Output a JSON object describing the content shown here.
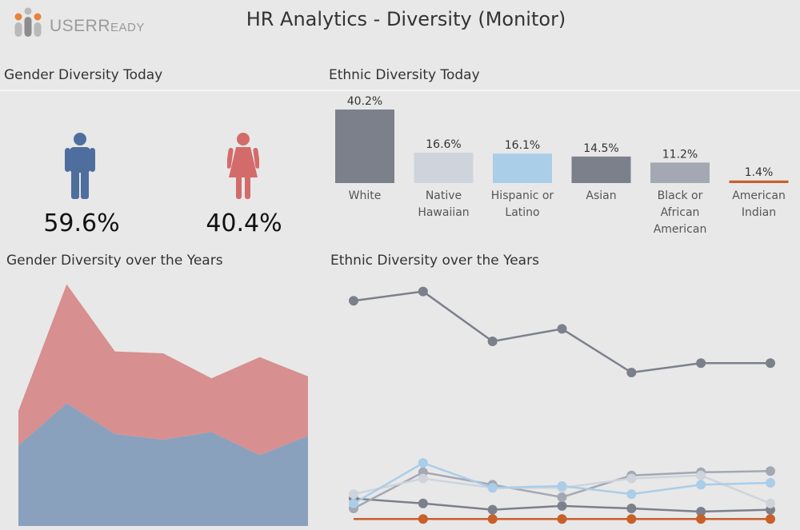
{
  "header": {
    "logo_text": "USER",
    "logo_text_small": "EADY",
    "logo_text_r": "R",
    "title": "HR Analytics - Diversity (Monitor)"
  },
  "sections": {
    "gender_today": "Gender Diversity Today",
    "ethnic_today": "Ethnic Diversity Today",
    "gender_years": "Gender Diversity over the Years",
    "ethnic_years": "Ethnic Diversity over the Years"
  },
  "gender_today": {
    "male_pct": "59.6%",
    "female_pct": "40.4%",
    "male_color": "#4e6e9e",
    "female_color": "#d36b6b"
  },
  "chart_data": [
    {
      "type": "bar",
      "categories": [
        [
          "White"
        ],
        [
          "Native",
          "Hawaiian"
        ],
        [
          "Hispanic or",
          "Latino"
        ],
        [
          "Asian"
        ],
        [
          "Black or",
          "African",
          "American"
        ],
        [
          "American",
          "Indian"
        ]
      ],
      "values": [
        40.2,
        16.6,
        16.1,
        14.5,
        11.2,
        1.4
      ],
      "labels": [
        "40.2%",
        "16.6%",
        "16.1%",
        "14.5%",
        "11.2%",
        "1.4%"
      ],
      "colors": [
        "#7c808b",
        "#cfd4dc",
        "#aacde8",
        "#7c808b",
        "#a3a8b3",
        "#c8602a"
      ],
      "ylim": [
        0,
        40.2
      ]
    },
    {
      "type": "area",
      "x": [
        1,
        2,
        3,
        4,
        5,
        6,
        7
      ],
      "series": [
        {
          "values": [
            42,
            64,
            48,
            45,
            49,
            37,
            47
          ],
          "color": "#8aa1be"
        },
        {
          "values": [
            18,
            62,
            43,
            45,
            28,
            51,
            31
          ],
          "color": "#d78f8f"
        }
      ],
      "ylim": [
        0,
        125
      ]
    },
    {
      "type": "line",
      "x": [
        1,
        2,
        3,
        4,
        5,
        6,
        7
      ],
      "series": [
        {
          "values": [
            36.5,
            38.0,
            30.0,
            32.0,
            25.0,
            26.5,
            26.5
          ],
          "color": "#7c808b"
        },
        {
          "values": [
            4.8,
            4.0,
            3.0,
            3.6,
            3.2,
            2.7,
            3.0
          ],
          "color": "#7c808b"
        },
        {
          "values": [
            3.2,
            9.0,
            7.0,
            5.0,
            8.5,
            9.0,
            9.2
          ],
          "color": "#a3a8b3"
        },
        {
          "values": [
            5.5,
            8.0,
            6.5,
            6.5,
            8.0,
            8.5,
            4.0
          ],
          "color": "#cfd4dc"
        },
        {
          "values": [
            4.0,
            10.5,
            6.5,
            6.8,
            5.5,
            7.0,
            7.3
          ],
          "color": "#aacde8"
        },
        {
          "values": [
            1.5,
            1.5,
            1.5,
            1.5,
            1.5,
            1.5,
            1.5
          ],
          "color": "#c8602a"
        }
      ],
      "ylim": [
        0,
        40
      ]
    }
  ]
}
